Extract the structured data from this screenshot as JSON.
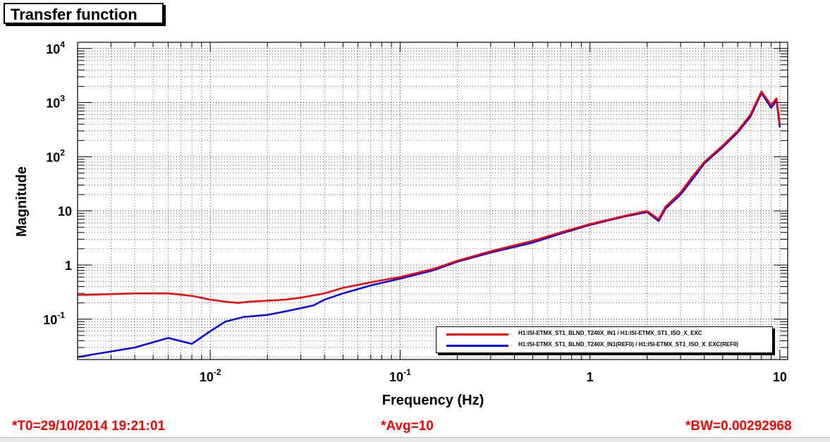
{
  "title": "Transfer function",
  "footer": {
    "t0": "*T0=29/10/2014 19:21:01",
    "avg": "*Avg=10",
    "bw": "*BW=0.00292968"
  },
  "colors": {
    "series1": "#ff0000",
    "series2": "#0000ff",
    "footer": "#ff0000",
    "grid": "#000000"
  },
  "chart_data": {
    "type": "line",
    "xlabel": "Frequency (Hz)",
    "ylabel": "Magnitude",
    "xscale": "log",
    "yscale": "log",
    "xlim": [
      0.002,
      11
    ],
    "ylim": [
      0.018,
      13000
    ],
    "grid": true,
    "legend_position": "bottom-right",
    "x_ticks": [
      {
        "base": "10",
        "exp": "-2"
      },
      {
        "base": "10",
        "exp": "-1"
      },
      {
        "base": "1",
        "exp": ""
      },
      {
        "base": "10",
        "exp": ""
      }
    ],
    "y_ticks": [
      {
        "base": "10",
        "exp": "-1"
      },
      {
        "base": "1",
        "exp": ""
      },
      {
        "base": "10",
        "exp": ""
      },
      {
        "base": "10",
        "exp": "2"
      },
      {
        "base": "10",
        "exp": "3"
      },
      {
        "base": "10",
        "exp": "4"
      }
    ],
    "series": [
      {
        "name": "H1:ISI-ETMX_ST1_BLND_T240X_IN1 / H1:ISI-ETMX_ST1_ISO_X_EXC",
        "x": [
          0.002,
          0.003,
          0.004,
          0.006,
          0.008,
          0.01,
          0.012,
          0.014,
          0.016,
          0.02,
          0.025,
          0.03,
          0.04,
          0.05,
          0.07,
          0.1,
          0.15,
          0.2,
          0.3,
          0.5,
          0.7,
          1,
          1.5,
          2,
          2.3,
          2.5,
          3,
          3.5,
          4,
          5,
          6,
          7,
          8,
          9,
          9.6,
          10
        ],
        "y": [
          0.28,
          0.29,
          0.3,
          0.3,
          0.27,
          0.23,
          0.21,
          0.2,
          0.21,
          0.22,
          0.23,
          0.25,
          0.3,
          0.38,
          0.48,
          0.6,
          0.85,
          1.2,
          1.8,
          2.8,
          4,
          5.7,
          8,
          10,
          7,
          12,
          22,
          45,
          80,
          160,
          300,
          600,
          1600,
          900,
          1200,
          400
        ]
      },
      {
        "name": "H1:ISI-ETMX_ST1_BLND_T240X_IN1(REF0) / H1:ISI-ETMX_ST1_ISO_X_EXC(REF0)",
        "x": [
          0.002,
          0.004,
          0.006,
          0.008,
          0.01,
          0.012,
          0.015,
          0.02,
          0.025,
          0.03,
          0.035,
          0.04,
          0.05,
          0.07,
          0.1,
          0.15,
          0.2,
          0.3,
          0.5,
          0.7,
          1,
          1.5,
          2,
          2.3,
          2.5,
          3,
          3.5,
          4,
          5,
          6,
          7,
          8,
          9,
          9.6,
          10
        ],
        "y": [
          0.02,
          0.03,
          0.045,
          0.035,
          0.06,
          0.09,
          0.11,
          0.12,
          0.14,
          0.16,
          0.18,
          0.23,
          0.3,
          0.42,
          0.56,
          0.8,
          1.15,
          1.7,
          2.6,
          3.8,
          5.5,
          7.8,
          9.5,
          6.5,
          11,
          20,
          40,
          75,
          150,
          280,
          550,
          1500,
          800,
          1100,
          350
        ]
      }
    ]
  }
}
